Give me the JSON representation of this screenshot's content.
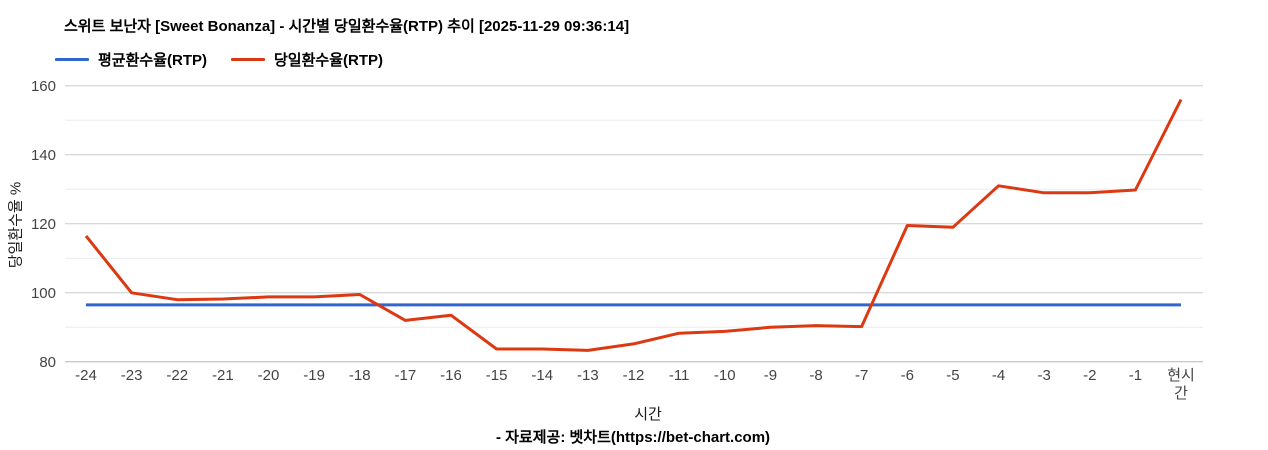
{
  "page": {
    "background": "#ffffff"
  },
  "chart_data": {
    "type": "line",
    "title": "스위트 보난자 [Sweet Bonanza] - 시간별 당일환수율(RTP) 추이 [2025-11-29 09:36:14]",
    "xlabel": "시간",
    "ylabel": "당일환수율 %",
    "source": "- 자료제공: 벳차트(https://bet-chart.com)",
    "categories": [
      "-24",
      "-23",
      "-22",
      "-21",
      "-20",
      "-19",
      "-18",
      "-17",
      "-16",
      "-15",
      "-14",
      "-13",
      "-12",
      "-11",
      "-10",
      "-9",
      "-8",
      "-7",
      "-6",
      "-5",
      "-4",
      "-3",
      "-2",
      "-1",
      "현시간"
    ],
    "series": [
      {
        "name": "평균환수율(RTP)",
        "color": "#3366cc",
        "values": [
          96.5,
          96.5,
          96.5,
          96.5,
          96.5,
          96.5,
          96.5,
          96.5,
          96.5,
          96.5,
          96.5,
          96.5,
          96.5,
          96.5,
          96.5,
          96.5,
          96.5,
          96.5,
          96.5,
          96.5,
          96.5,
          96.5,
          96.5,
          96.5,
          96.5
        ]
      },
      {
        "name": "당일환수율(RTP)",
        "color": "#dc3912",
        "values": [
          116.5,
          100,
          98,
          98.2,
          98.8,
          98.8,
          99.5,
          92,
          93.5,
          83.7,
          83.7,
          83.3,
          85.2,
          88.3,
          88.8,
          90,
          90.5,
          90.2,
          119.5,
          119,
          131,
          129,
          129,
          129.8,
          156
        ]
      }
    ],
    "ylim": [
      80,
      165
    ],
    "yticks": [
      80,
      100,
      120,
      140,
      160
    ],
    "grid": true,
    "legend_position": "top",
    "colors": {
      "grid_major": "#cccccc",
      "grid_minor": "#ebebeb",
      "baseline": "#b7b7b7",
      "tick_text": "#444444"
    }
  }
}
